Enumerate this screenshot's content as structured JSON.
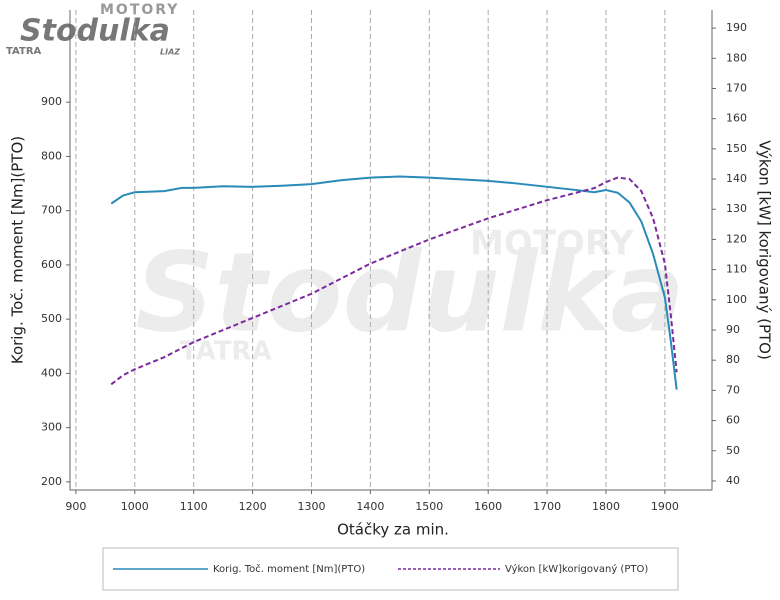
{
  "logo": {
    "top": "MOTORY",
    "main": "Stodulka",
    "left": "TATRA",
    "right": "LIAZ"
  },
  "chart_data": {
    "type": "line",
    "xlabel": "Otáčky za min.",
    "ylabel": "Korig. Toč. moment [Nm](PTO)",
    "y2label": "Výkon [kW] korigovaný (PTO)",
    "x": [
      960,
      980,
      1000,
      1050,
      1080,
      1100,
      1150,
      1200,
      1250,
      1300,
      1350,
      1400,
      1450,
      1500,
      1550,
      1600,
      1650,
      1700,
      1750,
      1780,
      1800,
      1820,
      1840,
      1860,
      1880,
      1900,
      1910,
      1920
    ],
    "series": [
      {
        "name": "Korig. Toč. moment [Nm](PTO)",
        "color": "#2a8ab8",
        "dash": false,
        "values": [
          713,
          728,
          734,
          736,
          742,
          742,
          745,
          744,
          746,
          749,
          756,
          761,
          763,
          761,
          758,
          755,
          750,
          744,
          738,
          734,
          738,
          733,
          715,
          680,
          620,
          540,
          460,
          370
        ]
      },
      {
        "name": "Výkon [kW]korigovaný (PTO)",
        "color": "#7b2a9e",
        "dash": true,
        "axis": "y2",
        "values": [
          72,
          75,
          77,
          81,
          84,
          86,
          90,
          94,
          98,
          102,
          107,
          112,
          116,
          120,
          123.5,
          127,
          130,
          133,
          135.5,
          137,
          139,
          140.5,
          140,
          136,
          127,
          112,
          95,
          76
        ]
      }
    ],
    "xlim": [
      890,
      1980
    ],
    "xticks": [
      900,
      1000,
      1100,
      1200,
      1300,
      1400,
      1500,
      1600,
      1700,
      1800,
      1900
    ],
    "ylim": [
      185,
      1070
    ],
    "yticks": [
      200,
      300,
      400,
      500,
      600,
      700,
      800,
      900
    ],
    "y2lim": [
      37,
      196
    ],
    "y2ticks": [
      40,
      50,
      60,
      70,
      80,
      90,
      100,
      110,
      120,
      130,
      140,
      150,
      160,
      170,
      180,
      190
    ],
    "grid": "x",
    "legend": "bottom"
  }
}
